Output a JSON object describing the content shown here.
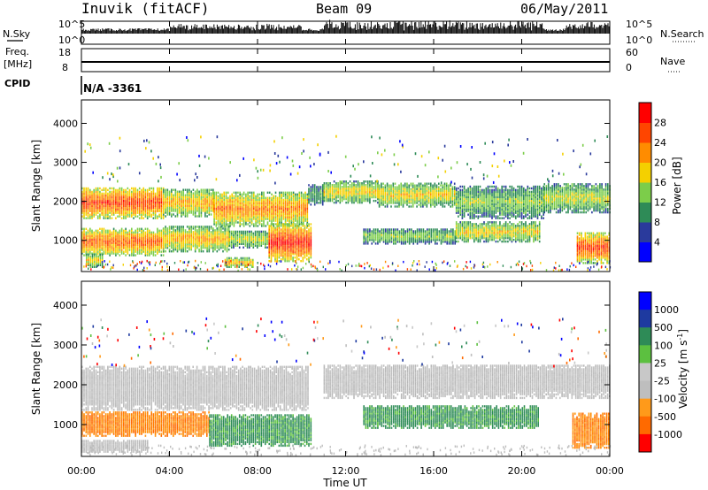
{
  "header": {
    "station": "Inuvik (fitACF)",
    "beam": "Beam 09",
    "date": "06/May/2011"
  },
  "strips": {
    "nsky_label": "N.Sky",
    "nsky_top": "10^5",
    "nsky_bottom": "10^0",
    "nsearch_label": "N.Search",
    "nsearch_top": "10^5",
    "nsearch_bottom": "10^0",
    "freq_label": "Freq.",
    "freq_unit": "[MHz]",
    "freq_top": "18",
    "freq_bottom": "8",
    "nave_label": "Nave",
    "nave_top": "60",
    "nave_bottom": "0",
    "cpid_label": "CPID",
    "cpid_value": "N/A -3361"
  },
  "colors": {
    "power_scale": [
      "#0000ff",
      "#2a3a9c",
      "#2e8b57",
      "#7ccd4a",
      "#f4d000",
      "#ff8c00",
      "#ff4500",
      "#ff0000"
    ],
    "velocity_scale": [
      "#ff0000",
      "#ff6a00",
      "#ff9a1a",
      "#bebebe",
      "#c8c8c8",
      "#5cc040",
      "#2e8b57",
      "#1e3aa0",
      "#0000ff"
    ],
    "ground_scatter": "#bebebe"
  },
  "chart_data": [
    {
      "type": "heatmap",
      "name": "power",
      "xlabel": "",
      "ylabel": "Slant Range [km]",
      "xlim": [
        0,
        24
      ],
      "ylim": [
        200,
        4600
      ],
      "yticks": [
        1000,
        2000,
        3000,
        4000
      ],
      "colorbar": {
        "label": "Power [dB]",
        "ticks": [
          "4",
          "8",
          "12",
          "16",
          "20",
          "24",
          "28"
        ],
        "range": [
          0,
          32
        ]
      },
      "bands": [
        {
          "from": 0.0,
          "to": 3.7,
          "lo": 1550,
          "hi": 2350,
          "level": 26
        },
        {
          "from": 3.7,
          "to": 6.0,
          "lo": 1600,
          "hi": 2300,
          "level": 20
        },
        {
          "from": 6.0,
          "to": 10.3,
          "lo": 1350,
          "hi": 2250,
          "level": 22
        },
        {
          "from": 10.3,
          "to": 11.0,
          "lo": 1900,
          "hi": 2400,
          "level": 12
        },
        {
          "from": 11.0,
          "to": 13.5,
          "lo": 1950,
          "hi": 2500,
          "level": 18
        },
        {
          "from": 13.5,
          "to": 17.0,
          "lo": 1850,
          "hi": 2450,
          "level": 18
        },
        {
          "from": 17.0,
          "to": 21.0,
          "lo": 1550,
          "hi": 2400,
          "level": 14
        },
        {
          "from": 21.0,
          "to": 24.0,
          "lo": 1700,
          "hi": 2450,
          "level": 16
        },
        {
          "from": 0.0,
          "to": 3.7,
          "lo": 600,
          "hi": 1300,
          "level": 24
        },
        {
          "from": 3.7,
          "to": 6.7,
          "lo": 700,
          "hi": 1350,
          "level": 20
        },
        {
          "from": 6.7,
          "to": 8.5,
          "lo": 800,
          "hi": 1250,
          "level": 16
        },
        {
          "from": 8.5,
          "to": 10.4,
          "lo": 450,
          "hi": 1400,
          "level": 28
        },
        {
          "from": 12.8,
          "to": 17.0,
          "lo": 900,
          "hi": 1300,
          "level": 14
        },
        {
          "from": 17.0,
          "to": 20.8,
          "lo": 950,
          "hi": 1450,
          "level": 18
        },
        {
          "from": 22.5,
          "to": 24.0,
          "lo": 400,
          "hi": 1200,
          "level": 26
        },
        {
          "from": 0.2,
          "to": 1.0,
          "lo": 300,
          "hi": 650,
          "level": 18
        },
        {
          "from": 6.5,
          "to": 7.8,
          "lo": 300,
          "hi": 550,
          "level": 20
        }
      ]
    },
    {
      "type": "heatmap",
      "name": "velocity",
      "xlabel": "Time UT",
      "ylabel": "Slant Range [km]",
      "xlim": [
        0,
        24
      ],
      "ylim": [
        200,
        4600
      ],
      "yticks": [
        1000,
        2000,
        3000,
        4000
      ],
      "xticks": [
        "00:00",
        "04:00",
        "08:00",
        "12:00",
        "16:00",
        "20:00",
        "00:00"
      ],
      "colorbar": {
        "label": "Velocity [m s^-1]",
        "ticks": [
          "1000",
          "500",
          "100",
          "25",
          "-25",
          "-100",
          "-500",
          "-1000"
        ]
      },
      "bands": [
        {
          "from": 0.0,
          "to": 10.3,
          "lo": 1350,
          "hi": 2450,
          "class": "ground"
        },
        {
          "from": 11.0,
          "to": 24.0,
          "lo": 1650,
          "hi": 2500,
          "class": "ground"
        },
        {
          "from": 0.0,
          "to": 5.8,
          "lo": 700,
          "hi": 1300,
          "class": "away"
        },
        {
          "from": 5.8,
          "to": 10.4,
          "lo": 450,
          "hi": 1250,
          "class": "toward"
        },
        {
          "from": 12.8,
          "to": 20.8,
          "lo": 900,
          "hi": 1450,
          "class": "toward"
        },
        {
          "from": 22.3,
          "to": 24.0,
          "lo": 400,
          "hi": 1300,
          "class": "away"
        },
        {
          "from": 0.0,
          "to": 3.0,
          "lo": 300,
          "hi": 600,
          "class": "ground"
        }
      ]
    }
  ]
}
